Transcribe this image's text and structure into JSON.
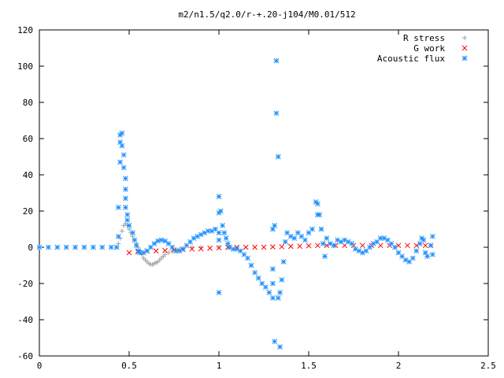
{
  "chart_data": {
    "type": "scatter",
    "title": "m2/n1.5/q2.0/r-+.20-j104/M0.01/512",
    "xlabel": "",
    "ylabel": "",
    "xlim": [
      0,
      2.5
    ],
    "ylim": [
      -60,
      120
    ],
    "x_ticks": [
      "0",
      "0.5",
      "1",
      "1.5",
      "2",
      "2.5"
    ],
    "y_ticks": [
      "-60",
      "-40",
      "-20",
      "0",
      "20",
      "40",
      "60",
      "80",
      "100",
      "120"
    ],
    "x_tick_values": [
      0,
      0.5,
      1,
      1.5,
      2,
      2.5
    ],
    "y_tick_values": [
      -60,
      -40,
      -20,
      0,
      20,
      40,
      60,
      80,
      100,
      120
    ],
    "grid": false,
    "legend_position": "top-right",
    "series": [
      {
        "name": "R stress",
        "marker": "plus",
        "color": "#a0a0a0",
        "points": [
          [
            0.44,
            2
          ],
          [
            0.45,
            5
          ],
          [
            0.46,
            9
          ],
          [
            0.47,
            12
          ],
          [
            0.48,
            13
          ],
          [
            0.49,
            12
          ],
          [
            0.5,
            10
          ],
          [
            0.51,
            8
          ],
          [
            0.52,
            6
          ],
          [
            0.53,
            4
          ],
          [
            0.54,
            2
          ],
          [
            0.55,
            0
          ],
          [
            0.56,
            -2
          ],
          [
            0.57,
            -4
          ],
          [
            0.58,
            -6
          ],
          [
            0.59,
            -7
          ],
          [
            0.6,
            -8
          ],
          [
            0.61,
            -9
          ],
          [
            0.62,
            -9.5
          ],
          [
            0.63,
            -9.5
          ],
          [
            0.64,
            -9
          ],
          [
            0.65,
            -8.5
          ],
          [
            0.66,
            -8
          ],
          [
            0.67,
            -7
          ],
          [
            0.68,
            -6
          ],
          [
            0.69,
            -5
          ],
          [
            0.7,
            -4
          ],
          [
            0.72,
            -3
          ],
          [
            0.74,
            -2
          ],
          [
            0.76,
            -1.5
          ],
          [
            0.78,
            -1
          ],
          [
            0.8,
            -0.5
          ],
          [
            0.85,
            0
          ],
          [
            0.9,
            0
          ],
          [
            1.0,
            0
          ]
        ]
      },
      {
        "name": "G work",
        "marker": "cross",
        "color": "#ff0000",
        "points": [
          [
            0.5,
            -3
          ],
          [
            0.55,
            -2.5
          ],
          [
            0.6,
            -2
          ],
          [
            0.65,
            -2
          ],
          [
            0.7,
            -1.8
          ],
          [
            0.75,
            -1.5
          ],
          [
            0.8,
            -1.2
          ],
          [
            0.85,
            -1
          ],
          [
            0.9,
            -0.8
          ],
          [
            0.95,
            -0.5
          ],
          [
            1.0,
            -0.3
          ],
          [
            1.05,
            0
          ],
          [
            1.1,
            0
          ],
          [
            1.15,
            0
          ],
          [
            1.2,
            0
          ],
          [
            1.25,
            0
          ],
          [
            1.3,
            0.2
          ],
          [
            1.35,
            0.3
          ],
          [
            1.4,
            0.5
          ],
          [
            1.45,
            0.6
          ],
          [
            1.5,
            0.8
          ],
          [
            1.55,
            1
          ],
          [
            1.6,
            1
          ],
          [
            1.65,
            1
          ],
          [
            1.7,
            1
          ],
          [
            1.75,
            1
          ],
          [
            1.8,
            1
          ],
          [
            1.85,
            1
          ],
          [
            1.9,
            1
          ],
          [
            1.95,
            1
          ],
          [
            2.0,
            1
          ],
          [
            2.05,
            1
          ],
          [
            2.1,
            1
          ],
          [
            2.15,
            1
          ],
          [
            2.18,
            1
          ]
        ]
      },
      {
        "name": "Acoustic flux",
        "marker": "star",
        "color": "#1e90ff",
        "points": [
          [
            0.0,
            0
          ],
          [
            0.05,
            0
          ],
          [
            0.1,
            0
          ],
          [
            0.15,
            0
          ],
          [
            0.2,
            0
          ],
          [
            0.25,
            0
          ],
          [
            0.3,
            0
          ],
          [
            0.35,
            0
          ],
          [
            0.4,
            0
          ],
          [
            0.43,
            0
          ],
          [
            0.44,
            6
          ],
          [
            0.44,
            22
          ],
          [
            0.45,
            47
          ],
          [
            0.45,
            58
          ],
          [
            0.45,
            62
          ],
          [
            0.46,
            63
          ],
          [
            0.46,
            56
          ],
          [
            0.47,
            51
          ],
          [
            0.47,
            44
          ],
          [
            0.48,
            38
          ],
          [
            0.48,
            32
          ],
          [
            0.48,
            27
          ],
          [
            0.48,
            22
          ],
          [
            0.49,
            18
          ],
          [
            0.49,
            15
          ],
          [
            0.5,
            12
          ],
          [
            0.52,
            8
          ],
          [
            0.53,
            4
          ],
          [
            0.54,
            1
          ],
          [
            0.55,
            -2
          ],
          [
            0.56,
            -3
          ],
          [
            0.58,
            -3
          ],
          [
            0.6,
            -2
          ],
          [
            0.62,
            0
          ],
          [
            0.64,
            2
          ],
          [
            0.66,
            3.5
          ],
          [
            0.68,
            4
          ],
          [
            0.7,
            3.5
          ],
          [
            0.72,
            2
          ],
          [
            0.74,
            0
          ],
          [
            0.76,
            -2
          ],
          [
            0.78,
            -2
          ],
          [
            0.8,
            -1
          ],
          [
            0.82,
            1
          ],
          [
            0.84,
            3
          ],
          [
            0.86,
            5
          ],
          [
            0.88,
            6
          ],
          [
            0.9,
            7
          ],
          [
            0.92,
            8
          ],
          [
            0.94,
            9
          ],
          [
            0.96,
            9
          ],
          [
            0.98,
            10
          ],
          [
            1.0,
            28
          ],
          [
            1.0,
            19
          ],
          [
            1.0,
            8
          ],
          [
            1.0,
            -25
          ],
          [
            1.0,
            4
          ],
          [
            1.01,
            20
          ],
          [
            1.02,
            12
          ],
          [
            1.03,
            8
          ],
          [
            1.04,
            5
          ],
          [
            1.05,
            2
          ],
          [
            1.06,
            0
          ],
          [
            1.08,
            -1
          ],
          [
            1.1,
            -1
          ],
          [
            1.12,
            -2
          ],
          [
            1.14,
            -4
          ],
          [
            1.16,
            -6
          ],
          [
            1.18,
            -10
          ],
          [
            1.2,
            -14
          ],
          [
            1.22,
            -17
          ],
          [
            1.24,
            -20
          ],
          [
            1.26,
            -22
          ],
          [
            1.28,
            -25
          ],
          [
            1.3,
            -28
          ],
          [
            1.3,
            -20
          ],
          [
            1.3,
            -12
          ],
          [
            1.3,
            10
          ],
          [
            1.31,
            12
          ],
          [
            1.31,
            -52
          ],
          [
            1.32,
            103
          ],
          [
            1.32,
            74
          ],
          [
            1.33,
            50
          ],
          [
            1.33,
            -28
          ],
          [
            1.34,
            -55
          ],
          [
            1.34,
            -25
          ],
          [
            1.35,
            -18
          ],
          [
            1.36,
            -8
          ],
          [
            1.37,
            3
          ],
          [
            1.38,
            8
          ],
          [
            1.4,
            6
          ],
          [
            1.42,
            5
          ],
          [
            1.44,
            8
          ],
          [
            1.46,
            6
          ],
          [
            1.48,
            4
          ],
          [
            1.5,
            8
          ],
          [
            1.52,
            10
          ],
          [
            1.54,
            25
          ],
          [
            1.55,
            18
          ],
          [
            1.55,
            24
          ],
          [
            1.56,
            18
          ],
          [
            1.57,
            10
          ],
          [
            1.58,
            2
          ],
          [
            1.59,
            -5
          ],
          [
            1.6,
            5
          ],
          [
            1.62,
            2
          ],
          [
            1.64,
            1
          ],
          [
            1.66,
            4
          ],
          [
            1.68,
            3
          ],
          [
            1.7,
            4
          ],
          [
            1.72,
            3
          ],
          [
            1.74,
            2
          ],
          [
            1.76,
            -1
          ],
          [
            1.78,
            -2
          ],
          [
            1.8,
            -3
          ],
          [
            1.82,
            -2
          ],
          [
            1.84,
            0
          ],
          [
            1.86,
            2
          ],
          [
            1.88,
            3
          ],
          [
            1.9,
            5
          ],
          [
            1.92,
            5
          ],
          [
            1.94,
            4
          ],
          [
            1.96,
            2
          ],
          [
            1.98,
            0
          ],
          [
            2.0,
            -3
          ],
          [
            2.02,
            -5
          ],
          [
            2.04,
            -7
          ],
          [
            2.06,
            -8
          ],
          [
            2.08,
            -6
          ],
          [
            2.1,
            -2
          ],
          [
            2.12,
            2
          ],
          [
            2.13,
            5
          ],
          [
            2.14,
            4
          ],
          [
            2.15,
            -3
          ],
          [
            2.16,
            -5
          ],
          [
            2.18,
            1
          ],
          [
            2.19,
            6
          ],
          [
            2.19,
            -4
          ]
        ]
      }
    ]
  }
}
